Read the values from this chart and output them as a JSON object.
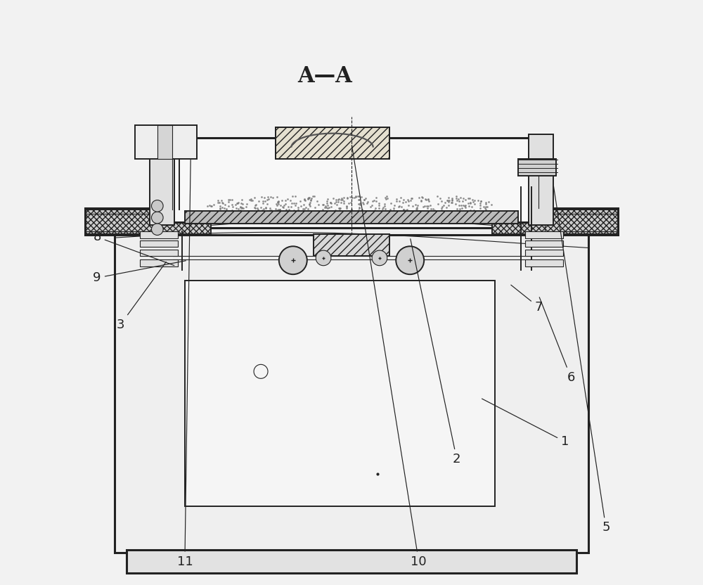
{
  "bg_color": "#f2f2f2",
  "line_color": "#222222",
  "title": "A—A",
  "label_fontsize": 13,
  "labels": {
    "1": [
      0.865,
      0.245,
      0.72,
      0.32
    ],
    "2": [
      0.68,
      0.215,
      0.6,
      0.595
    ],
    "3": [
      0.105,
      0.445,
      0.185,
      0.555
    ],
    "5": [
      0.935,
      0.098,
      0.845,
      0.685
    ],
    "6": [
      0.875,
      0.355,
      0.82,
      0.495
    ],
    "7": [
      0.82,
      0.475,
      0.77,
      0.515
    ],
    "8": [
      0.065,
      0.595,
      0.2,
      0.545
    ],
    "9": [
      0.065,
      0.525,
      0.22,
      0.555
    ],
    "10": [
      0.615,
      0.04,
      0.5,
      0.755
    ],
    "11": [
      0.215,
      0.04,
      0.225,
      0.73
    ]
  }
}
